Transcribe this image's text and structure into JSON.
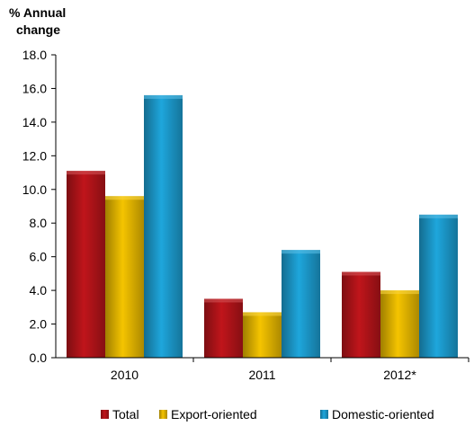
{
  "chart_data": {
    "type": "bar",
    "ylabel_lines": [
      "% Annual",
      "change"
    ],
    "categories": [
      "2010",
      "2011",
      "2012*"
    ],
    "series": [
      {
        "name": "Total",
        "values": [
          11.1,
          3.5,
          5.1
        ],
        "color": "#c0151b"
      },
      {
        "name": "Export-oriented",
        "values": [
          9.6,
          2.7,
          4.0
        ],
        "color": "#f5c400"
      },
      {
        "name": "Domestic-oriented",
        "values": [
          15.6,
          6.4,
          8.5
        ],
        "color": "#1ea6dc"
      }
    ],
    "ylim": [
      0,
      18
    ],
    "yticks": [
      "0.0",
      "2.0",
      "4.0",
      "6.0",
      "8.0",
      "10.0",
      "12.0",
      "14.0",
      "16.0",
      "18.0"
    ],
    "ytick_values": [
      0,
      2,
      4,
      6,
      8,
      10,
      12,
      14,
      16,
      18
    ],
    "grid": false,
    "legend_position": "bottom"
  }
}
